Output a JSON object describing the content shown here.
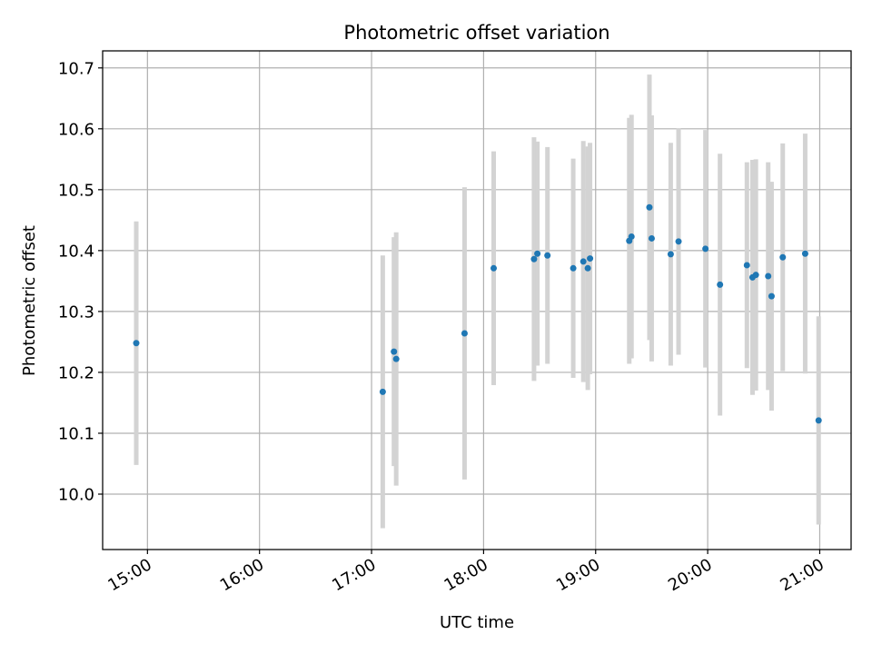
{
  "chart_data": {
    "type": "scatter",
    "title": "Photometric offset variation",
    "xlabel": "UTC time",
    "ylabel": "Photometric offset",
    "x_unit": "UTC hour (decimal)",
    "xlim": [
      14.6,
      21.28
    ],
    "ylim": [
      9.909,
      10.728
    ],
    "grid": true,
    "x_ticks": [
      15,
      16,
      17,
      18,
      19,
      20,
      21
    ],
    "x_tick_labels": [
      "15:00",
      "16:00",
      "17:00",
      "18:00",
      "19:00",
      "20:00",
      "21:00"
    ],
    "y_ticks": [
      10.0,
      10.1,
      10.2,
      10.3,
      10.4,
      10.5,
      10.6,
      10.7
    ],
    "y_tick_labels": [
      "10.0",
      "10.1",
      "10.2",
      "10.3",
      "10.4",
      "10.5",
      "10.6",
      "10.7"
    ],
    "series": [
      {
        "marker_color": "#1f77b4",
        "errorbar_color": "#d3d3d3",
        "points": [
          {
            "x": 14.9,
            "y": 10.248,
            "err": 0.2
          },
          {
            "x": 17.1,
            "y": 10.168,
            "err": 0.224
          },
          {
            "x": 17.2,
            "y": 10.234,
            "err": 0.188
          },
          {
            "x": 17.22,
            "y": 10.222,
            "err": 0.208
          },
          {
            "x": 17.83,
            "y": 10.264,
            "err": 0.24
          },
          {
            "x": 18.09,
            "y": 10.371,
            "err": 0.192
          },
          {
            "x": 18.45,
            "y": 10.386,
            "err": 0.2
          },
          {
            "x": 18.48,
            "y": 10.395,
            "err": 0.184
          },
          {
            "x": 18.57,
            "y": 10.392,
            "err": 0.178
          },
          {
            "x": 18.8,
            "y": 10.371,
            "err": 0.18
          },
          {
            "x": 18.89,
            "y": 10.382,
            "err": 0.198
          },
          {
            "x": 18.93,
            "y": 10.371,
            "err": 0.2
          },
          {
            "x": 18.95,
            "y": 10.387,
            "err": 0.19
          },
          {
            "x": 19.3,
            "y": 10.416,
            "err": 0.202
          },
          {
            "x": 19.32,
            "y": 10.423,
            "err": 0.2
          },
          {
            "x": 19.48,
            "y": 10.471,
            "err": 0.218
          },
          {
            "x": 19.5,
            "y": 10.42,
            "err": 0.202
          },
          {
            "x": 19.67,
            "y": 10.394,
            "err": 0.183
          },
          {
            "x": 19.74,
            "y": 10.415,
            "err": 0.186
          },
          {
            "x": 19.98,
            "y": 10.403,
            "err": 0.195
          },
          {
            "x": 20.11,
            "y": 10.344,
            "err": 0.215
          },
          {
            "x": 20.35,
            "y": 10.376,
            "err": 0.169
          },
          {
            "x": 20.4,
            "y": 10.356,
            "err": 0.193
          },
          {
            "x": 20.43,
            "y": 10.36,
            "err": 0.19
          },
          {
            "x": 20.54,
            "y": 10.358,
            "err": 0.187
          },
          {
            "x": 20.57,
            "y": 10.325,
            "err": 0.188
          },
          {
            "x": 20.67,
            "y": 10.389,
            "err": 0.187
          },
          {
            "x": 20.87,
            "y": 10.395,
            "err": 0.197
          },
          {
            "x": 20.99,
            "y": 10.121,
            "err": 0.171
          }
        ]
      }
    ]
  }
}
